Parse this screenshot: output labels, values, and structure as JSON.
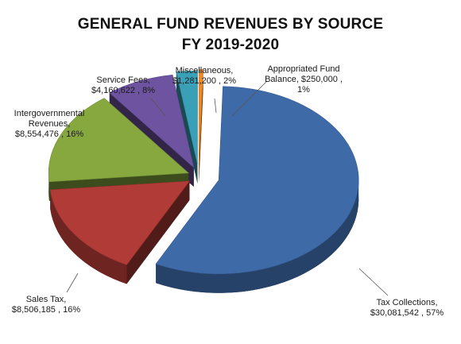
{
  "chart_data": {
    "type": "pie",
    "title": "GENERAL FUND REVENUES BY SOURCE",
    "subtitle": "FY 2019-2020",
    "categories": [
      "Tax Collections",
      "Sales Tax",
      "Intergovernmental Revenues",
      "Service Fees",
      "Miscellaneous",
      "Appropriated Fund Balance"
    ],
    "values": [
      30081542,
      8506185,
      8554476,
      4160622,
      1281200,
      250000
    ],
    "percents": [
      57,
      16,
      16,
      8,
      2,
      1
    ],
    "colors": [
      "#3f6aa8",
      "#b13b36",
      "#86a83f",
      "#6e53a0",
      "#3aa0b8",
      "#ee8a2a"
    ],
    "labels": [
      [
        "Tax Collections,",
        "$30,081,542 , 57%"
      ],
      [
        "Sales Tax,",
        "$8,506,185 , 16%"
      ],
      [
        "Intergovernmental",
        "Revenues,",
        "$8,554,476 , 16%"
      ],
      [
        "Service Fees,",
        "$4,160,622 , 8%"
      ],
      [
        "Miscellaneous,",
        "$1,281,200 , 2%"
      ],
      [
        "Appropriated Fund",
        "Balance,  $250,000 ,",
        "1%"
      ]
    ],
    "legend": "none",
    "style": "3d-exploded"
  }
}
